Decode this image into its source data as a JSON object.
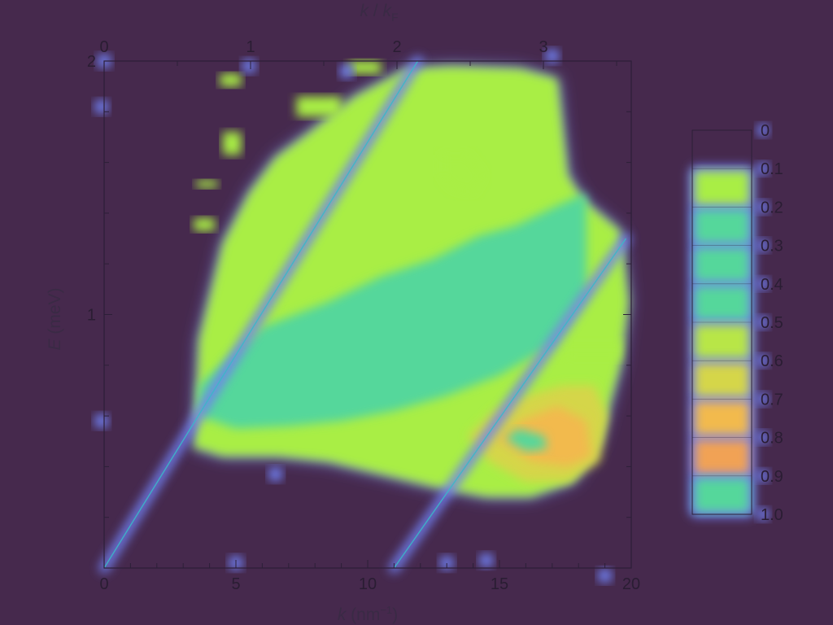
{
  "chart_data": {
    "type": "heatmap",
    "background_color": "#46294d",
    "colormap": [
      "#6f7ff0",
      "#3fd1b0",
      "#a9ee45",
      "#f2c64a",
      "#f08a5a"
    ],
    "x": {
      "label_main": "k",
      "label_unit_open": " (nm",
      "label_unit_sup": "−1",
      "label_unit_close": ")",
      "lim": [
        0,
        20
      ],
      "ticks": [
        0,
        5,
        10,
        15,
        20
      ],
      "tick_labels": [
        "0",
        "5",
        "10",
        "15",
        "20"
      ]
    },
    "x_top": {
      "label_k": "k",
      "label_sep": " / ",
      "label_kf": "k",
      "label_kf_sub": "F",
      "ticks": [
        0,
        1,
        2,
        3
      ],
      "tick_labels": [
        "0",
        "1",
        "2",
        "3"
      ]
    },
    "y": {
      "label_main": "E",
      "label_unit": " (meV)",
      "lim": [
        0,
        2
      ],
      "ticks": [
        1,
        2
      ],
      "tick_labels": [
        "1",
        "2"
      ]
    },
    "colorbar": {
      "ticks": [
        0,
        0.1,
        0.2,
        0.3,
        0.4,
        0.5,
        0.6,
        0.7,
        0.8,
        0.9,
        1.0
      ],
      "tick_labels": [
        "0",
        "0.1",
        "0.2",
        "0.3",
        "0.4",
        "0.5",
        "0.6",
        "0.7",
        "0.8",
        "0.9",
        "1.0"
      ],
      "band_levels": [
        null,
        0.5,
        0.3,
        0.3,
        0.3,
        0.55,
        0.65,
        0.8,
        0.9,
        0.3,
        0.85
      ]
    },
    "intensity_regions": [
      {
        "level": 0.5,
        "k": [
          3.4,
          3.6,
          4.5,
          5.5,
          6.5,
          7.8,
          9.5,
          11.5,
          13.2,
          15.8,
          17.2,
          17.6,
          18.2,
          19.6,
          19.9,
          19.6,
          18.8,
          17.8,
          16.2,
          14.5,
          12.5,
          10.5,
          8.5,
          6.6,
          4.5,
          3.6
        ],
        "E": [
          0.47,
          0.9,
          1.28,
          1.48,
          1.62,
          1.72,
          1.86,
          1.97,
          1.98,
          1.97,
          1.93,
          1.55,
          1.45,
          1.33,
          1.05,
          0.8,
          0.5,
          0.34,
          0.28,
          0.28,
          0.32,
          0.37,
          0.42,
          0.44,
          0.44,
          0.47
        ]
      },
      {
        "level": 0.3,
        "k": [
          3.6,
          6.0,
          8.5,
          10.5,
          12.5,
          14.2,
          15.6,
          17.2,
          18.3,
          18.3,
          17.0,
          15.0,
          13.0,
          11.0,
          9.0,
          7.0,
          5.0,
          3.6
        ],
        "E": [
          0.72,
          0.95,
          1.05,
          1.15,
          1.22,
          1.31,
          1.35,
          1.43,
          1.48,
          1.08,
          0.88,
          0.76,
          0.68,
          0.62,
          0.58,
          0.56,
          0.55,
          0.6
        ]
      },
      {
        "level": 0.65,
        "k": [
          13.8,
          14.8,
          16.0,
          17.4,
          18.6,
          19.1,
          18.8,
          17.6,
          16.0,
          14.6,
          13.8
        ],
        "E": [
          0.52,
          0.62,
          0.68,
          0.72,
          0.72,
          0.6,
          0.42,
          0.34,
          0.34,
          0.42,
          0.52
        ]
      },
      {
        "level": 0.8,
        "k": [
          14.8,
          15.8,
          17.2,
          18.3,
          18.5,
          17.6,
          16.2,
          15.0
        ],
        "E": [
          0.5,
          0.58,
          0.64,
          0.58,
          0.44,
          0.4,
          0.42,
          0.5
        ]
      },
      {
        "level": 0.3,
        "k": [
          15.2,
          15.7,
          16.7,
          16.8,
          16.0,
          15.2
        ],
        "E": [
          0.51,
          0.55,
          0.52,
          0.47,
          0.46,
          0.51
        ]
      },
      {
        "level": 0.5,
        "k": [
          12.8,
          12.8,
          13.8,
          14.4,
          14.0,
          13.2
        ],
        "E": [
          1.55,
          1.63,
          1.63,
          1.55,
          1.48,
          1.5
        ]
      },
      {
        "level": 0.5,
        "k": [
          17.5,
          17.5,
          19.6,
          19.6
        ],
        "E": [
          0.82,
          0.9,
          0.9,
          0.82
        ]
      },
      {
        "level": 0.5,
        "k": [
          3.5,
          3.5,
          4.3,
          4.3
        ],
        "E": [
          1.5,
          1.53,
          1.53,
          1.5
        ]
      },
      {
        "level": 0.5,
        "k": [
          4.5,
          4.5,
          5.2,
          5.2
        ],
        "E": [
          1.63,
          1.72,
          1.72,
          1.63
        ]
      },
      {
        "level": 0.5,
        "k": [
          3.4,
          3.4,
          4.2,
          4.2
        ],
        "E": [
          1.33,
          1.38,
          1.38,
          1.33
        ]
      },
      {
        "level": 0.5,
        "k": [
          4.4,
          4.4,
          5.2,
          5.2
        ],
        "E": [
          1.9,
          1.95,
          1.95,
          1.9
        ]
      },
      {
        "level": 0.5,
        "k": [
          7.3,
          7.3,
          9.0,
          9.0
        ],
        "E": [
          1.78,
          1.86,
          1.86,
          1.78
        ]
      },
      {
        "level": 0.5,
        "k": [
          9.3,
          9.3,
          10.5,
          10.5
        ],
        "E": [
          1.95,
          2.0,
          2.0,
          1.95
        ]
      }
    ],
    "dispersion_curves": [
      {
        "k": [
          0,
          11.9
        ],
        "E": [
          0,
          2.0
        ]
      },
      {
        "k": [
          11.0,
          19.8
        ],
        "E": [
          0,
          1.3
        ]
      }
    ],
    "scatter_points": [
      {
        "k": 0.0,
        "E": 2.0
      },
      {
        "k": 5.5,
        "E": 1.98
      },
      {
        "k": 9.2,
        "E": 1.96
      },
      {
        "k": 17.0,
        "E": 2.02
      },
      {
        "k": -0.1,
        "E": 1.82
      },
      {
        "k": -0.1,
        "E": 0.58
      },
      {
        "k": 6.5,
        "E": 0.37
      },
      {
        "k": 5.0,
        "E": 0.02
      },
      {
        "k": 13.0,
        "E": 0.02
      },
      {
        "k": 14.5,
        "E": 0.03
      },
      {
        "k": 19.0,
        "E": -0.03
      }
    ],
    "grid": false
  }
}
